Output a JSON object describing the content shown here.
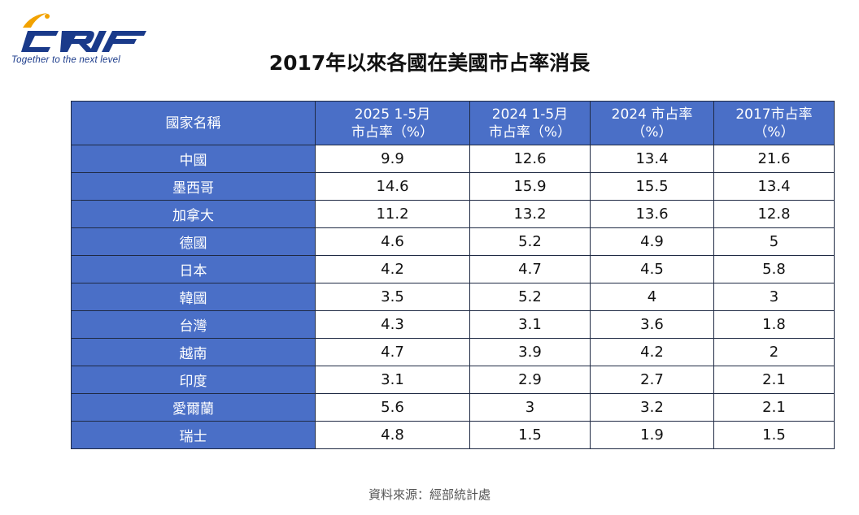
{
  "logo": {
    "brand": "CRIF",
    "tagline": "Together to the next level",
    "colors": {
      "primary": "#1a3a8a",
      "accent": "#f2a200"
    }
  },
  "title": "2017年以來各國在美國市占率消長",
  "table": {
    "headers": [
      {
        "line1": "國家名稱",
        "line2": ""
      },
      {
        "line1": "2025 1-5月",
        "line2": "市占率（%）"
      },
      {
        "line1": "2024 1-5月",
        "line2": "市占率（%）"
      },
      {
        "line1": "2024 市占率",
        "line2": "（%）"
      },
      {
        "line1": "2017市占率",
        "line2": "（%）"
      }
    ],
    "rows": [
      {
        "name": "中國",
        "v2025": "9.9",
        "v2024p": "12.6",
        "v2024": "13.4",
        "v2017": "21.6"
      },
      {
        "name": "墨西哥",
        "v2025": "14.6",
        "v2024p": "15.9",
        "v2024": "15.5",
        "v2017": "13.4"
      },
      {
        "name": "加拿大",
        "v2025": "11.2",
        "v2024p": "13.2",
        "v2024": "13.6",
        "v2017": "12.8"
      },
      {
        "name": "德國",
        "v2025": "4.6",
        "v2024p": "5.2",
        "v2024": "4.9",
        "v2017": "5"
      },
      {
        "name": "日本",
        "v2025": "4.2",
        "v2024p": "4.7",
        "v2024": "4.5",
        "v2017": "5.8"
      },
      {
        "name": "韓國",
        "v2025": "3.5",
        "v2024p": "5.2",
        "v2024": "4",
        "v2017": "3"
      },
      {
        "name": "台灣",
        "v2025": "4.3",
        "v2024p": "3.1",
        "v2024": "3.6",
        "v2017": "1.8"
      },
      {
        "name": "越南",
        "v2025": "4.7",
        "v2024p": "3.9",
        "v2024": "4.2",
        "v2017": "2"
      },
      {
        "name": "印度",
        "v2025": "3.1",
        "v2024p": "2.9",
        "v2024": "2.7",
        "v2017": "2.1"
      },
      {
        "name": "愛爾蘭",
        "v2025": "5.6",
        "v2024p": "3",
        "v2024": "3.2",
        "v2017": "2.1"
      },
      {
        "name": "瑞士",
        "v2025": "4.8",
        "v2024p": "1.5",
        "v2024": "1.9",
        "v2017": "1.5"
      }
    ],
    "colors": {
      "header_bg": "#4a6fc7",
      "border": "#1f2a44"
    }
  },
  "source": "資料來源：經部統計處"
}
